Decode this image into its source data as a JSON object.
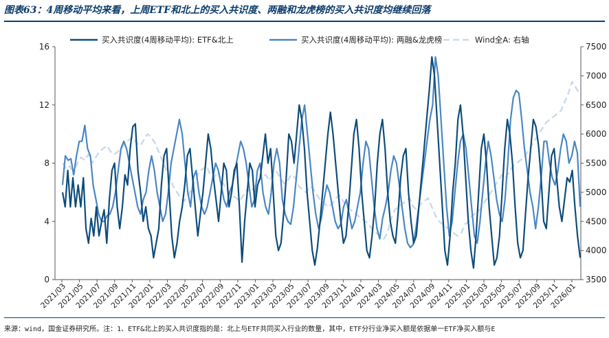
{
  "title": "图表63：4周移动平均来看，上周ETF和北上的买入共识度、两融和龙虎榜的买入共识度均继续回落",
  "footnote": "来源：wind，国金证券研究所。注：1、ETF&北上的买入共识度指的是：北上与ETF共同买入行业的数量，其中，ETF分行业净买入额是依据单一ETF净买入额与E",
  "chart_data": {
    "type": "line",
    "xlabel": "",
    "ylabel": "",
    "ylim": [
      0,
      16
    ],
    "y_ticks": [
      "0",
      "4",
      "8",
      "12",
      "16"
    ],
    "y2lim": [
      3500,
      7500
    ],
    "y2_ticks": [
      "3500",
      "4000",
      "4500",
      "5000",
      "5500",
      "6000",
      "6500",
      "7000",
      "7500"
    ],
    "x_ticks": [
      "2021/03",
      "2021/05",
      "2021/07",
      "2021/09",
      "2021/11",
      "2022/01",
      "2022/03",
      "2022/05",
      "2022/07",
      "2022/09",
      "2022/11",
      "2023/01",
      "2023/03",
      "2023/05",
      "2023/07",
      "2023/09",
      "2023/11",
      "2024/01",
      "2024/03",
      "2024/05",
      "2024/07",
      "2024/09",
      "2024/11",
      "2025/01",
      "2025/03",
      "2025/05",
      "2025/07",
      "2025/09",
      "2025/11",
      "2026/01"
    ],
    "grid": false,
    "legend_position": "top",
    "series": [
      {
        "name": "买入共识度(4周移动平均): ETF&北上",
        "axis": "left",
        "color": "#0d4c7a",
        "values": [
          6,
          5,
          7.5,
          5,
          7,
          5,
          6.5,
          5,
          7,
          3.5,
          2.5,
          4.2,
          3,
          5,
          3,
          4,
          4.8,
          2.5,
          5.5,
          7.5,
          8,
          5,
          3.5,
          5,
          7.2,
          6.5,
          9,
          10.5,
          10.7,
          7.5,
          6,
          4,
          5,
          3.5,
          3,
          1.5,
          2.5,
          3.5,
          6.5,
          8.5,
          9,
          6,
          3,
          1.5,
          2.5,
          4,
          5,
          6.5,
          8.5,
          9,
          7,
          5,
          3,
          4.5,
          6,
          8,
          10,
          9,
          7,
          5.5,
          4,
          6,
          8,
          7.5,
          5,
          6,
          7.5,
          8,
          5,
          1.2,
          4,
          6,
          8,
          7.5,
          5,
          6.5,
          7,
          8.5,
          10,
          8,
          9,
          6,
          3,
          2,
          2.5,
          4.5,
          7,
          10,
          9.5,
          8,
          10,
          12,
          11,
          9,
          6,
          4,
          2,
          1,
          2.2,
          4,
          6,
          8,
          10,
          11.5,
          10,
          8,
          6,
          4,
          2.5,
          3,
          5,
          7.5,
          10,
          11,
          9,
          6,
          4,
          2,
          1.5,
          3,
          5,
          8,
          10,
          11,
          9,
          6,
          4,
          3,
          2.5,
          4.5,
          7,
          8.5,
          9,
          6,
          4,
          2.5,
          3,
          5,
          7,
          9,
          11,
          13,
          15.3,
          14,
          11,
          8,
          5,
          2,
          1,
          3,
          6,
          8,
          11,
          12,
          10,
          7,
          4,
          2,
          0.8,
          3,
          6,
          9,
          10,
          8,
          5,
          3,
          1,
          1.5,
          3,
          6,
          9,
          11,
          10,
          8,
          5,
          2.5,
          1.5,
          2,
          4.5,
          7,
          9,
          11,
          10.5,
          9.2,
          7,
          4,
          3.5,
          6,
          8.5,
          9,
          7,
          5,
          4,
          5.5,
          7,
          6.7,
          7.5,
          5,
          3,
          1.5
        ]
      },
      {
        "name": "买入共识度(4周移动平均): 两融&龙虎榜",
        "axis": "left",
        "color": "#4a86c5",
        "values": [
          6.5,
          8.5,
          8.2,
          8.3,
          7.2,
          8.5,
          9.5,
          9.5,
          10.6,
          9,
          8.5,
          6.5,
          5.5,
          4.5,
          4,
          4,
          4.4,
          4.5,
          5,
          6,
          7.5,
          9,
          9.5,
          9,
          8,
          7,
          6,
          5,
          4.5,
          5.5,
          6,
          7.5,
          8.5,
          7.5,
          6,
          5,
          4,
          4.5,
          6,
          8,
          9,
          10,
          11,
          10,
          8,
          6,
          5,
          7,
          7.5,
          6,
          5,
          4.5,
          5,
          6,
          7,
          8,
          7.5,
          6.5,
          5.5,
          5,
          6,
          6.5,
          7.5,
          8.5,
          9.5,
          9,
          8,
          6.5,
          5,
          5.5,
          7.5,
          8,
          6,
          5,
          4.5,
          6,
          8,
          9,
          8,
          5.5,
          4.5,
          4,
          3.8,
          5,
          7,
          9,
          11,
          12,
          10,
          8,
          6,
          4.5,
          3.5,
          4.2,
          5.5,
          6.5,
          6,
          5,
          4,
          3.5,
          3.8,
          5,
          5.5,
          4.5,
          3.5,
          4,
          5,
          6,
          8,
          9.5,
          9,
          7,
          5,
          3.5,
          2.8,
          4.2,
          5,
          6,
          7.5,
          8.5,
          8,
          6.5,
          5,
          3.5,
          2.5,
          2.2,
          2.4,
          3.5,
          5,
          6.5,
          8,
          9.5,
          11,
          12,
          15.3,
          14,
          11,
          8,
          5,
          3,
          4,
          6,
          8,
          9.5,
          10,
          9,
          7,
          5,
          3,
          2.5,
          4,
          6,
          8,
          9.5,
          8.5,
          7,
          5.5,
          4.5,
          4,
          5.5,
          8,
          11,
          12.5,
          13,
          12.8,
          11,
          9,
          7.5,
          6,
          5,
          3.5,
          5,
          7,
          9.5,
          9.5,
          8,
          7,
          6.5,
          7.5,
          9,
          10,
          9.5,
          8,
          8.5,
          9.5,
          8.7,
          5
        ]
      },
      {
        "name": "Wind全A: 右轴",
        "axis": "right",
        "color": "#c9d9ea",
        "dashed": true,
        "values": [
          5500,
          5400,
          5450,
          5300,
          5500,
          5600,
          5550,
          5650,
          5500,
          5600,
          5700,
          5750,
          5800,
          5700,
          5650,
          5700,
          5750,
          5850,
          5900,
          5950,
          5850,
          5800,
          5900,
          6000,
          5950,
          5850,
          5700,
          5550,
          5400,
          5250,
          5100,
          5000,
          4900,
          4850,
          4950,
          5050,
          5200,
          5350,
          5400,
          5450,
          5300,
          5250,
          5350,
          5200,
          5100,
          5000,
          4950,
          4900,
          4850,
          4950,
          5050,
          5000,
          5100,
          5200,
          5250,
          5300,
          5200,
          5300,
          5350,
          5250,
          5150,
          5200,
          5300,
          5250,
          5100,
          5050,
          5000,
          5100,
          5050,
          4950,
          4850,
          4800,
          4750,
          4800,
          4900,
          4950,
          4850,
          4750,
          4700,
          4650,
          4600,
          4550,
          4500,
          4450,
          4350,
          4300,
          4250,
          4200,
          4300,
          4550,
          4700,
          4750,
          4800,
          4850,
          4900,
          4750,
          4700,
          4800,
          4850,
          4900,
          4750,
          4600,
          4500,
          4450,
          4400,
          4350,
          4300,
          4250,
          4300,
          4450,
          4500,
          4600,
          4650,
          4700,
          4800,
          4900,
          5000,
          5100,
          5200,
          5300,
          5250,
          5350,
          5450,
          5500,
          5550,
          5600,
          5700,
          5800,
          5900,
          6000,
          6100,
          6200,
          6250,
          6300,
          6350,
          6400,
          6550,
          6700,
          6900,
          6800,
          6700
        ]
      }
    ]
  }
}
